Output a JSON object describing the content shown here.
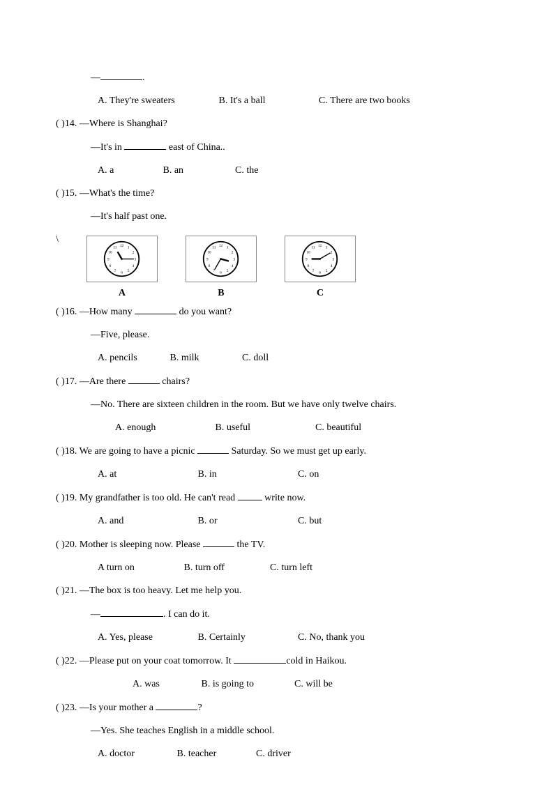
{
  "q13": {
    "dash": "—",
    "period": ".",
    "optA": "A. They're sweaters",
    "optB": "B. It's a ball",
    "optC": "C. There are two books"
  },
  "q14": {
    "stem": "(    )14. —Where is Shanghai?",
    "ans_pre": "—It's in ",
    "ans_post": " east of China..",
    "optA": "A. a",
    "optB": "B. an",
    "optC": "C. the"
  },
  "q15": {
    "stem": "(    )15. —What's the time?",
    "ans": "—It's half past one.",
    "slash": "\\",
    "labelA": "A",
    "labelB": "B",
    "labelC": "C",
    "clocks": {
      "A": {
        "hour_angle": -30,
        "min_angle": 90
      },
      "B": {
        "hour_angle": 105,
        "min_angle": -150
      },
      "C": {
        "hour_angle": -90,
        "min_angle": 60
      }
    }
  },
  "q16": {
    "stem_pre": "(    )16. —How many ",
    "stem_post": " do you want?",
    "ans": "—Five, please.",
    "optA": "A. pencils",
    "optB": "B. milk",
    "optC": "C. doll"
  },
  "q17": {
    "stem_pre": "(    )17. —Are there ",
    "stem_post": " chairs?",
    "ans": "—No. There are sixteen children in the room. But we have only twelve chairs.",
    "optA": "A. enough",
    "optB": "B.   useful",
    "optC": "C. beautiful"
  },
  "q18": {
    "stem_pre": "(    )18. We are going to have a picnic ",
    "stem_post": " Saturday. So we must get up early.",
    "optA": "A. at",
    "optB": "B. in",
    "optC": "C. on"
  },
  "q19": {
    "stem_pre": "  (    )19. My grandfather is too old. He can't read ",
    "stem_post": " write now.",
    "optA": "A. and",
    "optB": "B. or",
    "optC": "C. but"
  },
  "q20": {
    "stem_pre": "  (    )20. Mother is sleeping now. Please ",
    "stem_post": " the TV.",
    "optA": "A turn on",
    "optB": "B.   turn off",
    "optC": "C. turn left"
  },
  "q21": {
    "stem": "(    )21. —The box is too heavy. Let me help you.",
    "dash": "—",
    "ans_post": ". I can do it.",
    "optA": "A. Yes, please",
    "optB": "B. Certainly",
    "optC": "C. No, thank you"
  },
  "q22": {
    "stem_pre": "(    )22. —Please put on your coat tomorrow. It ",
    "stem_post": "cold in Haikou.",
    "optA": "A. was",
    "optB": "B. is going to",
    "optC": "C. will be"
  },
  "q23": {
    "stem_pre": "(    )23. —Is your mother a ",
    "stem_post": "?",
    "ans": "—Yes. She teaches English in a middle school.",
    "optA": "A. doctor",
    "optB": "B. teacher",
    "optC": "C. driver"
  },
  "clock_style": {
    "face_stroke": "#000000",
    "face_fill": "#ffffff",
    "tick_color": "#000000",
    "hand_color": "#000000"
  }
}
